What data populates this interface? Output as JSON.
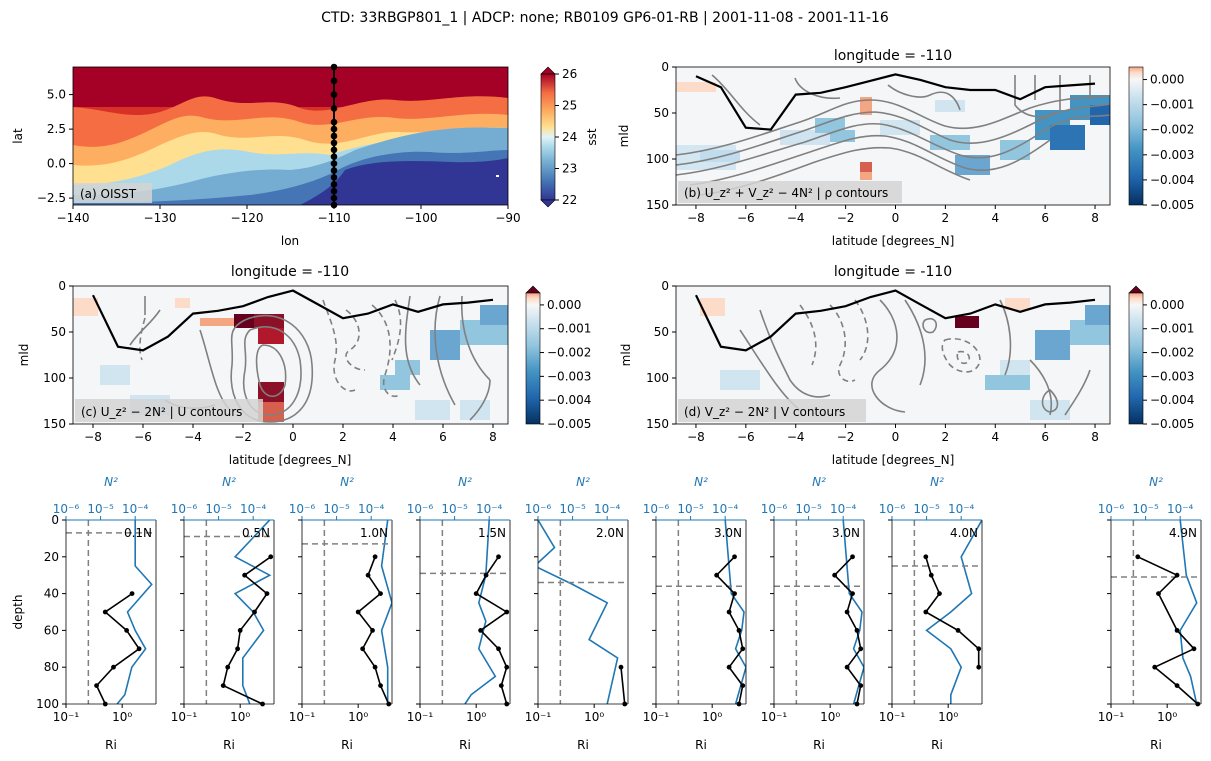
{
  "figure": {
    "title": "CTD: 33RBGP801_1 | ADCP: none; RB0109 GP6-01-RB | 2001-11-08 - 2001-11-16"
  },
  "colors": {
    "black_line": "#000000",
    "contour": "#808080",
    "profile_blue": "#1f77b4",
    "label_box": "#d3d3d3"
  },
  "chart_data": [
    {
      "id": "a",
      "type": "heatmap",
      "panel_label": "(a) OISST",
      "xlabel": "lon",
      "ylabel": "lat",
      "xticks": [
        -140,
        -130,
        -120,
        -110,
        -100,
        -90
      ],
      "yticks": [
        -2.5,
        0.0,
        2.5,
        5.0
      ],
      "xlim": [
        -140,
        -90
      ],
      "ylim": [
        -3,
        7
      ],
      "colorbar": {
        "label": "sst",
        "ticks": [
          22,
          23,
          24,
          25,
          26
        ],
        "range": [
          22,
          26
        ],
        "colormap": "RdYlBu_r",
        "extend": "both"
      },
      "ctd_longitude": -110,
      "ctd_latitudes": [
        -3,
        -2.5,
        -2,
        -1.5,
        -1,
        -0.5,
        0,
        0.5,
        1,
        1.5,
        2,
        2.5,
        3,
        4,
        5,
        6,
        7
      ]
    },
    {
      "id": "b",
      "type": "heatmap",
      "title": "longitude = -110",
      "panel_label": "(b) U_z² + V_z² − 4N² | ρ contours",
      "xlabel": "latitude [degrees_N]",
      "ylabel": "mld",
      "xticks": [
        -8,
        -6,
        -4,
        -2,
        0,
        2,
        4,
        6,
        8
      ],
      "yticks": [
        0,
        50,
        100,
        150
      ],
      "xlim": [
        -8.8,
        8.6
      ],
      "ylim": [
        150,
        0
      ],
      "colorbar": {
        "ticks": [
          "0.000",
          "−0.001",
          "−0.002",
          "−0.003",
          "−0.004",
          "−0.005"
        ],
        "range": [
          -0.005,
          0.0005
        ],
        "colormap": "RdBu_r",
        "extend": "neither"
      },
      "mld_line": {
        "lat": [
          -8,
          -7,
          -6,
          -5,
          -4,
          -3,
          -2,
          -1,
          0,
          1,
          2,
          3,
          4,
          5,
          6,
          7,
          8
        ],
        "depth": [
          10,
          22,
          66,
          68,
          30,
          28,
          22,
          15,
          8,
          14,
          22,
          25,
          25,
          35,
          22,
          20,
          18
        ]
      }
    },
    {
      "id": "c",
      "type": "heatmap",
      "title": "longitude = -110",
      "panel_label": "(c) U_z² − 2N² | U contours",
      "xlabel": "latitude [degrees_N]",
      "ylabel": "mld",
      "xticks": [
        -8,
        -6,
        -4,
        -2,
        0,
        2,
        4,
        6,
        8
      ],
      "yticks": [
        0,
        50,
        100,
        150
      ],
      "xlim": [
        -8.8,
        8.6
      ],
      "ylim": [
        150,
        0
      ],
      "colorbar": {
        "ticks": [
          "0.000",
          "−0.001",
          "−0.002",
          "−0.003",
          "−0.004",
          "−0.005"
        ],
        "range": [
          -0.005,
          0.0005
        ],
        "colormap": "RdBu_r",
        "extend": "max"
      },
      "mld_line": {
        "lat": [
          -8,
          -7,
          -6,
          -5,
          -4,
          -3,
          -2,
          -1,
          0,
          1,
          2,
          3,
          4,
          5,
          6,
          7,
          8
        ],
        "depth": [
          10,
          66,
          70,
          55,
          30,
          27,
          22,
          12,
          5,
          20,
          35,
          30,
          20,
          28,
          20,
          18,
          15
        ]
      }
    },
    {
      "id": "d",
      "type": "heatmap",
      "title": "longitude = -110",
      "panel_label": "(d) V_z² − 2N² | V contours",
      "xlabel": "latitude [degrees_N]",
      "ylabel": "mld",
      "xticks": [
        -8,
        -6,
        -4,
        -2,
        0,
        2,
        4,
        6,
        8
      ],
      "yticks": [
        0,
        50,
        100,
        150
      ],
      "xlim": [
        -8.8,
        8.6
      ],
      "ylim": [
        150,
        0
      ],
      "colorbar": {
        "ticks": [
          "0.000",
          "−0.001",
          "−0.002",
          "−0.003",
          "−0.004",
          "−0.005"
        ],
        "range": [
          -0.005,
          0.0005
        ],
        "colormap": "RdBu_r",
        "extend": "max"
      },
      "mld_line": {
        "lat": [
          -8,
          -7,
          -6,
          -5,
          -4,
          -3,
          -2,
          -1,
          0,
          1,
          2,
          3,
          4,
          5,
          6,
          7,
          8
        ],
        "depth": [
          10,
          66,
          70,
          55,
          30,
          27,
          22,
          12,
          5,
          20,
          35,
          30,
          20,
          28,
          20,
          18,
          15
        ]
      }
    },
    {
      "id": "profiles",
      "type": "line",
      "bottom_xlabel": "Ri",
      "top_xlabel": "N²",
      "ylabel": "depth",
      "ylim": [
        100,
        0
      ],
      "yticks": [
        0,
        20,
        40,
        60,
        80,
        100
      ],
      "bottom_xticks": [
        "10⁻¹",
        "10⁰"
      ],
      "top_xticks": [
        "10⁻⁶",
        "10⁻⁵",
        "10⁻⁴"
      ],
      "ri_critical": 0.25,
      "panels": [
        {
          "label": "0.1N",
          "mld": 7,
          "ri": [
            [
              1.5,
              40
            ],
            [
              0.5,
              50
            ],
            [
              1.2,
              60
            ],
            [
              2.0,
              70
            ],
            [
              0.7,
              80
            ],
            [
              0.35,
              90
            ],
            [
              0.5,
              100
            ]
          ],
          "n2": [
            [
              0.0001,
              0
            ],
            [
              0.0001,
              25
            ],
            [
              0.0003,
              35
            ],
            [
              6e-05,
              50
            ],
            [
              0.0001,
              60
            ],
            [
              0.0002,
              70
            ],
            [
              8e-05,
              80
            ],
            [
              5e-05,
              95
            ],
            [
              3e-05,
              100
            ]
          ]
        },
        {
          "label": "0.5N",
          "mld": 9,
          "ri": [
            [
              3.5,
              20
            ],
            [
              1.2,
              30
            ],
            [
              3.0,
              40
            ],
            [
              1.8,
              50
            ],
            [
              1.0,
              60
            ],
            [
              0.9,
              70
            ],
            [
              0.6,
              80
            ],
            [
              0.5,
              90
            ],
            [
              2.5,
              100
            ]
          ],
          "n2": [
            [
              0.0003,
              0
            ],
            [
              3e-05,
              20
            ],
            [
              0.0003,
              30
            ],
            [
              3e-05,
              40
            ],
            [
              0.0001,
              50
            ],
            [
              0.0002,
              60
            ],
            [
              5e-05,
              75
            ],
            [
              5e-05,
              90
            ],
            [
              8e-05,
              100
            ]
          ]
        },
        {
          "label": "1.0N",
          "mld": 13,
          "ri": [
            [
              2.0,
              20
            ],
            [
              1.5,
              30
            ],
            [
              2.5,
              40
            ],
            [
              1.0,
              50
            ],
            [
              1.8,
              60
            ],
            [
              1.2,
              70
            ],
            [
              2.0,
              80
            ],
            [
              2.5,
              90
            ],
            [
              3.5,
              100
            ]
          ],
          "n2": [
            [
              0.0003,
              0
            ],
            [
              0.0002,
              25
            ],
            [
              0.0004,
              45
            ],
            [
              0.0002,
              60
            ],
            [
              0.0003,
              80
            ],
            [
              0.0003,
              100
            ]
          ]
        },
        {
          "label": "1.5N",
          "mld": 29,
          "ri": [
            [
              2.5,
              20
            ],
            [
              1.5,
              30
            ],
            [
              1.0,
              40
            ],
            [
              3.5,
              50
            ],
            [
              1.2,
              60
            ],
            [
              2.5,
              70
            ],
            [
              3.5,
              80
            ],
            [
              2.8,
              90
            ],
            [
              3.5,
              100
            ]
          ],
          "n2": [
            [
              0.0001,
              0
            ],
            [
              8e-05,
              30
            ],
            [
              5e-05,
              45
            ],
            [
              8e-05,
              55
            ],
            [
              5e-05,
              70
            ],
            [
              0.00015,
              85
            ],
            [
              3e-05,
              95
            ],
            [
              2e-05,
              100
            ]
          ]
        },
        {
          "label": "2.0N",
          "mld": 34,
          "ri": [
            [
              3.0,
              80
            ],
            [
              3.5,
              100
            ]
          ],
          "n2": [
            [
              1e-06,
              0
            ],
            [
              3e-06,
              15
            ],
            [
              8e-07,
              25
            ],
            [
              1e-05,
              35
            ],
            [
              0.0001,
              45
            ],
            [
              3e-05,
              65
            ],
            [
              0.0002,
              75
            ],
            [
              0.0001,
              100
            ]
          ]
        },
        {
          "label": "3.0N",
          "mld": 36,
          "ri": [
            [
              2.5,
              20
            ],
            [
              1.2,
              30
            ],
            [
              2.5,
              40
            ],
            [
              2.0,
              50
            ],
            [
              3.0,
              60
            ],
            [
              3.5,
              70
            ],
            [
              2.0,
              80
            ],
            [
              3.5,
              90
            ],
            [
              3.0,
              100
            ]
          ],
          "n2": [
            [
              0.0001,
              0
            ],
            [
              0.00015,
              40
            ],
            [
              0.00035,
              50
            ],
            [
              0.0003,
              60
            ],
            [
              0.0002,
              70
            ],
            [
              0.0004,
              80
            ],
            [
              0.0002,
              100
            ]
          ]
        },
        {
          "label": "3.0N",
          "mld": 36,
          "ri": [
            [
              2.5,
              20
            ],
            [
              1.2,
              30
            ],
            [
              2.5,
              40
            ],
            [
              2.0,
              50
            ],
            [
              3.0,
              60
            ],
            [
              3.5,
              70
            ],
            [
              2.0,
              80
            ],
            [
              3.5,
              90
            ],
            [
              3.0,
              100
            ]
          ],
          "n2": [
            [
              0.0001,
              0
            ],
            [
              0.00015,
              40
            ],
            [
              0.00035,
              50
            ],
            [
              0.0003,
              60
            ],
            [
              0.0002,
              70
            ],
            [
              0.0004,
              80
            ],
            [
              0.0002,
              100
            ]
          ]
        },
        {
          "label": "4.0N",
          "mld": 25,
          "ri": [
            [
              0.4,
              20
            ],
            [
              0.5,
              30
            ],
            [
              0.7,
              40
            ],
            [
              0.4,
              50
            ],
            [
              1.5,
              60
            ],
            [
              3.5,
              70
            ],
            [
              3.5,
              80
            ]
          ],
          "n2": [
            [
              0.0004,
              0
            ],
            [
              0.0001,
              20
            ],
            [
              0.0002,
              40
            ],
            [
              5e-05,
              50
            ],
            [
              1e-05,
              60
            ],
            [
              5e-05,
              70
            ],
            [
              0.0001,
              80
            ],
            [
              5e-05,
              95
            ],
            [
              5e-05,
              100
            ]
          ]
        },
        {
          "label": "4.9N",
          "mld": 31,
          "ri": [
            [
              0.3,
              20
            ],
            [
              1.5,
              30
            ],
            [
              0.7,
              40
            ],
            [
              1.5,
              60
            ],
            [
              3.0,
              70
            ],
            [
              0.6,
              80
            ],
            [
              1.5,
              90
            ],
            [
              3.5,
              100
            ]
          ],
          "n2": [
            [
              0.0001,
              0
            ],
            [
              0.00015,
              30
            ],
            [
              0.0003,
              45
            ],
            [
              0.0001,
              60
            ],
            [
              0.00012,
              75
            ],
            [
              0.0002,
              85
            ],
            [
              0.0003,
              100
            ]
          ]
        }
      ]
    }
  ]
}
